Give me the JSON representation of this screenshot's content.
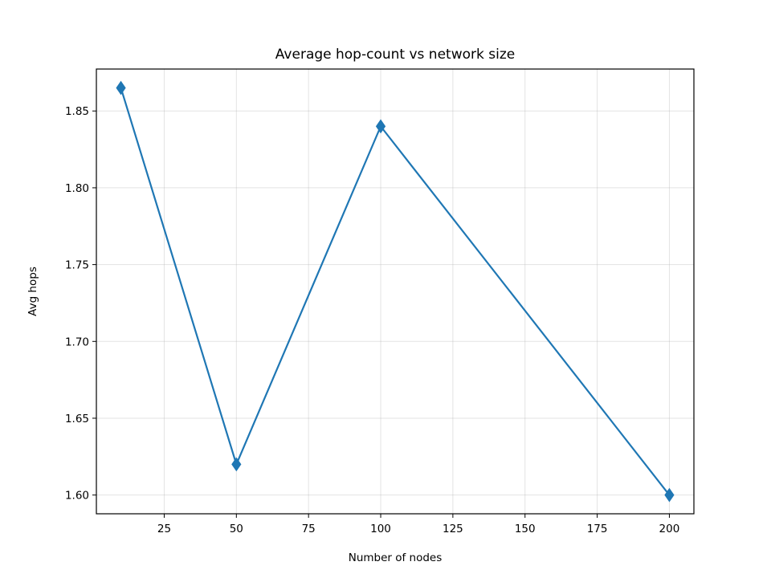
{
  "chart_data": {
    "type": "line",
    "title": "Average hop-count vs network size",
    "xlabel": "Number of nodes",
    "ylabel": "Avg hops",
    "x": [
      10,
      50,
      100,
      200
    ],
    "series": [
      {
        "values": [
          1.865,
          1.62,
          1.84,
          1.6
        ]
      }
    ],
    "xlim": [
      1.5,
      208.5
    ],
    "ylim": [
      1.5878,
      1.8773
    ],
    "xticks": [
      25,
      50,
      75,
      100,
      125,
      150,
      175,
      200
    ],
    "yticks": [
      1.6,
      1.65,
      1.7,
      1.75,
      1.8,
      1.85
    ],
    "ytick_format": 2,
    "grid": true,
    "marker": "diamond",
    "color": "#1f77b4",
    "legend": "none"
  }
}
